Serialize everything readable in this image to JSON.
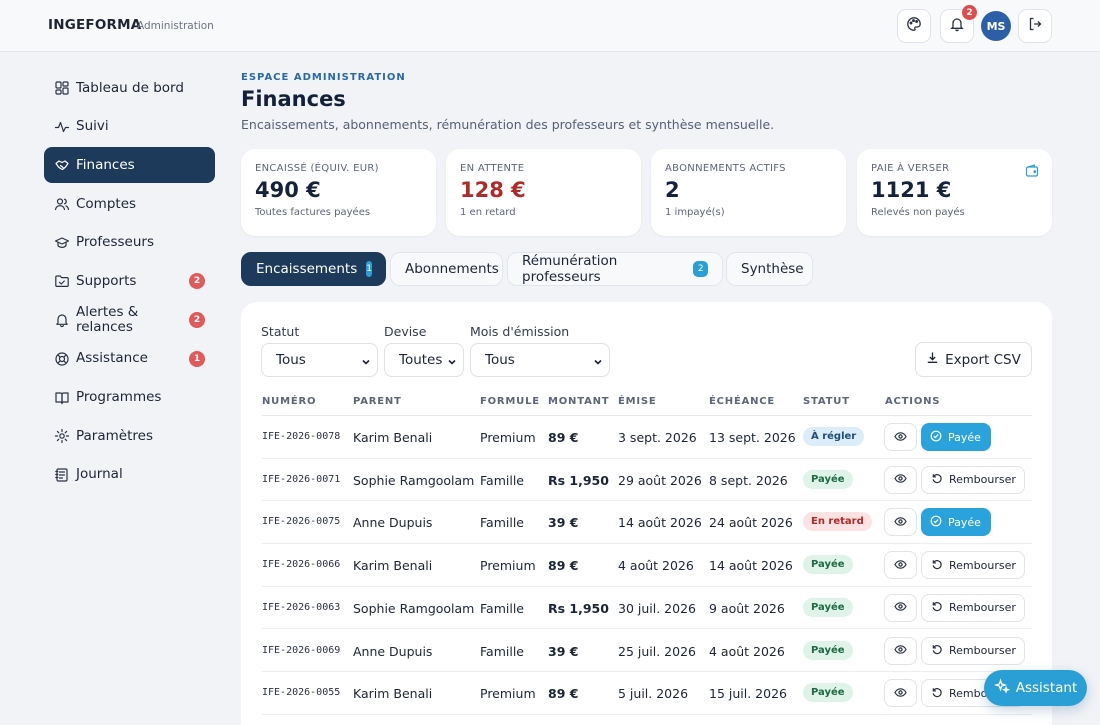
{
  "header": {
    "brand": "INGEFORMA",
    "brand_sub": "Administration",
    "notifications_count": "2",
    "avatar_initials": "MS",
    "icons": [
      "palette-icon",
      "bell-icon",
      "logout-icon"
    ]
  },
  "sidebar": {
    "items": [
      {
        "label": "Tableau de bord",
        "icon": "dashboard-icon",
        "badge": null,
        "active": false
      },
      {
        "label": "Suivi",
        "icon": "activity-icon",
        "badge": null,
        "active": false
      },
      {
        "label": "Finances",
        "icon": "handshake-icon",
        "badge": null,
        "active": true
      },
      {
        "label": "Comptes",
        "icon": "users-icon",
        "badge": null,
        "active": false
      },
      {
        "label": "Professeurs",
        "icon": "graduation-cap-icon",
        "badge": null,
        "active": false
      },
      {
        "label": "Supports",
        "icon": "folder-icon",
        "badge": "2",
        "active": false
      },
      {
        "label": "Alertes & relances",
        "icon": "bell-icon",
        "badge": "2",
        "active": false
      },
      {
        "label": "Assistance",
        "icon": "lifebuoy-icon",
        "badge": "1",
        "active": false
      },
      {
        "label": "Programmes",
        "icon": "book-icon",
        "badge": null,
        "active": false
      },
      {
        "label": "Paramètres",
        "icon": "gear-icon",
        "badge": null,
        "active": false
      },
      {
        "label": "Journal",
        "icon": "journal-icon",
        "badge": null,
        "active": false
      }
    ]
  },
  "page": {
    "eyebrow": "ESPACE ADMINISTRATION",
    "title": "Finances",
    "subtitle": "Encaissements, abonnements, rémunération des professeurs et synthèse mensuelle."
  },
  "kpis": [
    {
      "label": "ENCAISSÉ (ÉQUIV. EUR)",
      "value": "490 €",
      "note": "Toutes factures payées"
    },
    {
      "label": "EN ATTENTE",
      "value": "128 €",
      "note": "1 en retard"
    },
    {
      "label": "ABONNEMENTS ACTIFS",
      "value": "2",
      "note": "1 impayé(s)"
    },
    {
      "label": "PAIE À VERSER",
      "value": "1121 €",
      "note": "Relevés non payés"
    }
  ],
  "tabs": [
    {
      "label": "Encaissements",
      "badge": "1",
      "active": true
    },
    {
      "label": "Abonnements",
      "badge": null,
      "active": false
    },
    {
      "label": "Rémunération professeurs",
      "badge": "2",
      "active": false
    },
    {
      "label": "Synthèse",
      "badge": null,
      "active": false
    }
  ],
  "filters": {
    "status_label": "Statut",
    "status_value": "Tous",
    "currency_label": "Devise",
    "currency_value": "Toutes",
    "month_label": "Mois d'émission",
    "month_value": "Tous",
    "export_label": "Export CSV"
  },
  "table": {
    "columns": [
      "NUMÉRO",
      "PARENT",
      "FORMULE",
      "MONTANT",
      "ÉMISE",
      "ÉCHÉANCE",
      "STATUT",
      "ACTIONS"
    ],
    "rows": [
      {
        "numero": "IFE-2026-0078",
        "parent": "Karim Benali",
        "formule": "Premium",
        "montant": "89 €",
        "emise": "3 sept. 2026",
        "echeance": "13 sept. 2026",
        "statut": "À régler",
        "action": "Payée"
      },
      {
        "numero": "IFE-2026-0071",
        "parent": "Sophie Ramgoolam",
        "formule": "Famille",
        "montant": "Rs 1,950",
        "emise": "29 août 2026",
        "echeance": "8 sept. 2026",
        "statut": "Payée",
        "action": "Rembourser"
      },
      {
        "numero": "IFE-2026-0075",
        "parent": "Anne Dupuis",
        "formule": "Famille",
        "montant": "39 €",
        "emise": "14 août 2026",
        "echeance": "24 août 2026",
        "statut": "En retard",
        "action": "Payée"
      },
      {
        "numero": "IFE-2026-0066",
        "parent": "Karim Benali",
        "formule": "Premium",
        "montant": "89 €",
        "emise": "4 août 2026",
        "echeance": "14 août 2026",
        "statut": "Payée",
        "action": "Rembourser"
      },
      {
        "numero": "IFE-2026-0063",
        "parent": "Sophie Ramgoolam",
        "formule": "Famille",
        "montant": "Rs 1,950",
        "emise": "30 juil. 2026",
        "echeance": "9 août 2026",
        "statut": "Payée",
        "action": "Rembourser"
      },
      {
        "numero": "IFE-2026-0069",
        "parent": "Anne Dupuis",
        "formule": "Famille",
        "montant": "39 €",
        "emise": "25 juil. 2026",
        "echeance": "4 août 2026",
        "statut": "Payée",
        "action": "Rembourser"
      },
      {
        "numero": "IFE-2026-0055",
        "parent": "Karim Benali",
        "formule": "Premium",
        "montant": "89 €",
        "emise": "5 juil. 2026",
        "echeance": "15 juil. 2026",
        "statut": "Payée",
        "action": "Rembourser"
      }
    ]
  },
  "assistant_label": "Assistant",
  "colors": {
    "primary": "#1d3a5a",
    "accent": "#2a9fd6",
    "danger": "#e05a5a",
    "late_text": "#b02a2a"
  }
}
